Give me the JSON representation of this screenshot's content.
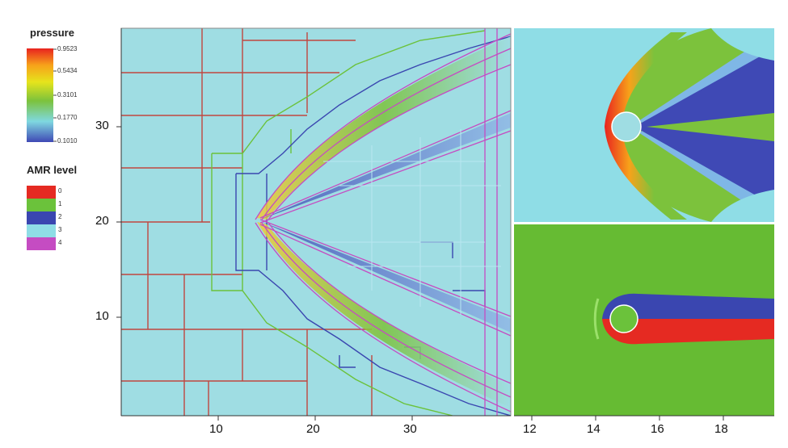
{
  "legend": {
    "pressure_title": "pressure",
    "pressure_ticks": [
      "0.9523",
      "0.5434",
      "0.3101",
      "0.1770",
      "0.1010"
    ],
    "pressure_colors": [
      "#e8231f",
      "#f7a21a",
      "#e6e41c",
      "#7cc23c",
      "#7fd8e0",
      "#3f49b5"
    ],
    "amr_title": "AMR level",
    "amr_entries": [
      {
        "label": "0",
        "color": "#e52a22"
      },
      {
        "label": "1",
        "color": "#6bc23b"
      },
      {
        "label": "2",
        "color": "#3a46b0"
      },
      {
        "label": "3",
        "color": "#8fdde6"
      },
      {
        "label": "4",
        "color": "#c54cc2"
      }
    ]
  },
  "left_panel": {
    "x_ticks": [
      "10",
      "20",
      "30"
    ],
    "y_ticks": [
      "30",
      "20",
      "10"
    ],
    "background": "#9fdde3"
  },
  "right_panel": {
    "x_ticks": [
      "12",
      "14",
      "16",
      "18"
    ]
  }
}
